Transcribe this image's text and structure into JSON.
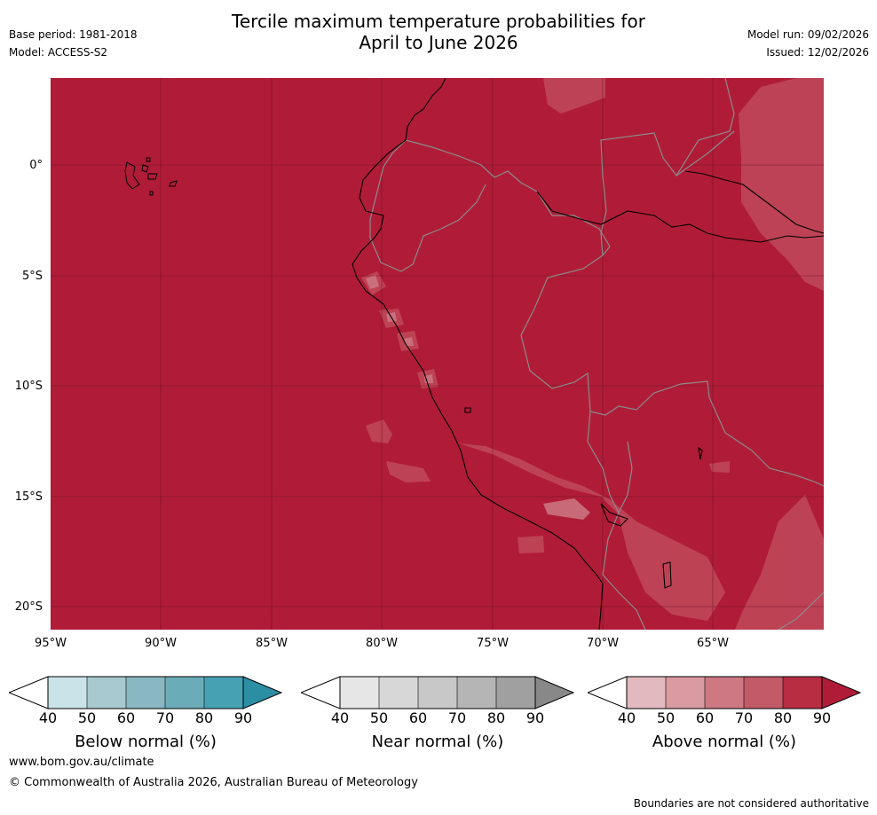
{
  "title_line1": "Tercile maximum temperature probabilities for",
  "title_line2": "April to June 2026",
  "meta_left": {
    "base_period": "Base period: 1981-2018",
    "model": "Model: ACCESS-S2"
  },
  "meta_right": {
    "model_run": "Model run: 09/02/2026",
    "issued": "Issued: 12/02/2026"
  },
  "latitude_labels": [
    "0°",
    "5°S",
    "10°S",
    "15°S",
    "20°S"
  ],
  "longitude_labels": [
    "95°W",
    "90°W",
    "85°W",
    "80°W",
    "75°W",
    "70°W",
    "65°W"
  ],
  "colorbars": [
    {
      "label": "Below normal (%)",
      "ticks": [
        "40",
        "50",
        "60",
        "70",
        "80",
        "90"
      ],
      "colors": [
        "#c9e3e8",
        "#a7c9cf",
        "#89b7c2",
        "#6aacb8",
        "#46a2b3",
        "#2b8ea3"
      ]
    },
    {
      "label": "Near normal (%)",
      "ticks": [
        "40",
        "50",
        "60",
        "70",
        "80",
        "90"
      ],
      "colors": [
        "#e6e6e6",
        "#d7d7d7",
        "#c8c8c8",
        "#b5b5b5",
        "#a0a0a0",
        "#888888"
      ]
    },
    {
      "label": "Above normal (%)",
      "ticks": [
        "40",
        "50",
        "60",
        "70",
        "80",
        "90"
      ],
      "colors": [
        "#e2b9be",
        "#d99aa1",
        "#cd7883",
        "#c25a67",
        "#b72e42",
        "#b01c38"
      ]
    }
  ],
  "colors": {
    "map_base": "#b01c38",
    "map_light_1": "#c0495a",
    "map_light_2": "#cd7883",
    "map_light_3": "#e2b9be",
    "country_border": "#8a8a8a",
    "coastline": "#000000"
  },
  "footer": {
    "website": "www.bom.gov.au/climate",
    "copyright": "© Commonwealth of Australia 2026, Australian Bureau of Meteorology",
    "disclaimer": "Boundaries are not considered authoritative"
  }
}
